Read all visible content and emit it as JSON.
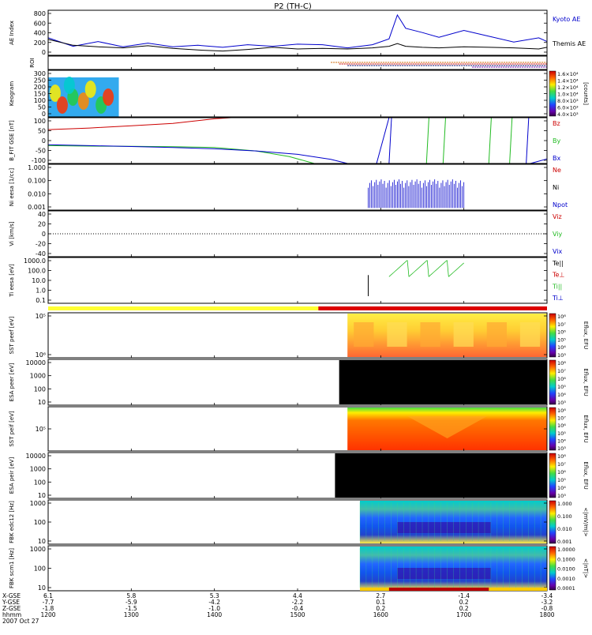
{
  "header": {
    "title": "P2 (TH-C)"
  },
  "footer": {
    "row_labels": [
      "X-GSE",
      "Y-GSE",
      "Z-GSE",
      "hhmm",
      "2007 Oct 27"
    ],
    "date": "2007 Oct 27",
    "columns": [
      {
        "x_gse": "6.1",
        "y_gse": "-7.7",
        "z_gse": "-1.8",
        "hhmm": "1200"
      },
      {
        "x_gse": "5.8",
        "y_gse": "-5.9",
        "z_gse": "-1.5",
        "hhmm": "1300"
      },
      {
        "x_gse": "5.3",
        "y_gse": "-4.2",
        "z_gse": "-1.0",
        "hhmm": "1400"
      },
      {
        "x_gse": "4.4",
        "y_gse": "-2.2",
        "z_gse": "-0.4",
        "hhmm": "1500"
      },
      {
        "x_gse": "2.7",
        "y_gse": "0.1",
        "z_gse": "0.2",
        "hhmm": "1600"
      },
      {
        "x_gse": "-1.4",
        "y_gse": "0.2",
        "z_gse": "0.2",
        "hhmm": "1700"
      },
      {
        "x_gse": "-3.4",
        "y_gse": "-3.2",
        "z_gse": "-0.8",
        "hhmm": "1800"
      }
    ]
  },
  "colors": {
    "red": "#cc0000",
    "green": "#22bb22",
    "blue": "#0000cc",
    "black": "#000000",
    "yellow": "#ffff33",
    "orange": "#ff9900"
  },
  "chart_data": [
    {
      "id": "ae",
      "type": "line",
      "ylabel": "AE Index",
      "yticks": [
        "800",
        "600",
        "400",
        "200",
        "0"
      ],
      "ylim": [
        0,
        850
      ],
      "x": [
        12.0,
        12.3,
        12.6,
        12.9,
        13.2,
        13.5,
        13.8,
        14.1,
        14.4,
        14.7,
        15.0,
        15.3,
        15.6,
        15.9,
        16.1,
        16.2,
        16.3,
        16.5,
        16.7,
        17.0,
        17.3,
        17.6,
        17.9,
        18.0
      ],
      "series": [
        {
          "name": "Kyoto AE",
          "color": "#0000cc",
          "values": [
            330,
            170,
            260,
            160,
            230,
            160,
            190,
            150,
            200,
            170,
            210,
            200,
            140,
            200,
            310,
            760,
            510,
            430,
            340,
            470,
            360,
            250,
            330,
            260
          ]
        },
        {
          "name": "Themis AE",
          "color": "#000000",
          "values": [
            300,
            190,
            160,
            140,
            180,
            130,
            100,
            80,
            110,
            150,
            120,
            130,
            120,
            140,
            170,
            220,
            170,
            150,
            140,
            160,
            150,
            140,
            120,
            150
          ]
        }
      ]
    },
    {
      "id": "roi",
      "type": "bar",
      "ylabel": "ROI",
      "segments": [
        {
          "start": 15.4,
          "end": 18.0,
          "color": "#cc6600"
        },
        {
          "start": 15.5,
          "end": 18.0,
          "color": "#cc0000"
        },
        {
          "start": 15.6,
          "end": 18.0,
          "color": "#000066"
        },
        {
          "start": 17.1,
          "end": 18.0,
          "color": "#6600aa"
        }
      ]
    },
    {
      "id": "keogram",
      "type": "heatmap",
      "ylabel": "Keogram",
      "yticks": [
        "300",
        "250",
        "200",
        "150",
        "100",
        "50",
        "0"
      ],
      "ylim": [
        0,
        300
      ],
      "x_range": [
        12.0,
        12.85
      ],
      "colorbar": {
        "label": "[counts]",
        "ticks": [
          "1.6×10⁴",
          "1.4×10⁴",
          "1.2×10⁴",
          "1.0×10⁴",
          "8.0×10³",
          "6.0×10³",
          "4.0×10³"
        ]
      }
    },
    {
      "id": "bfit",
      "type": "line",
      "ylabel": "B_FIT GSE [nT]",
      "yticks": [
        "100",
        "50",
        "0",
        "-50",
        "-100"
      ],
      "ylim": [
        -100,
        100
      ],
      "legend": [
        {
          "name": "Bz",
          "color": "#cc0000"
        },
        {
          "name": "By",
          "color": "#22bb22"
        },
        {
          "name": "Bx",
          "color": "#0000cc"
        }
      ],
      "series": [
        {
          "name": "Bz",
          "color": "#cc0000",
          "x": [
            12.0,
            12.5,
            13.0,
            13.5,
            14.0,
            14.2
          ],
          "values": [
            48,
            55,
            65,
            75,
            95,
            100
          ]
        },
        {
          "name": "By",
          "color": "#22bb22",
          "x": [
            12.0,
            12.5,
            13.0,
            13.5,
            14.0,
            14.5,
            14.9,
            15.2
          ],
          "values": [
            -22,
            -24,
            -25,
            -27,
            -30,
            -45,
            -70,
            -100
          ]
        },
        {
          "name": "Bx",
          "color": "#0000cc",
          "x": [
            12.0,
            12.5,
            13.0,
            13.5,
            14.0,
            14.5,
            15.0,
            15.4,
            15.6
          ],
          "values": [
            -18,
            -22,
            -26,
            -30,
            -36,
            -45,
            -60,
            -82,
            -100
          ]
        }
      ],
      "spikes": [
        {
          "x": 16.1,
          "y1": -100,
          "y2": 100,
          "color": "#0000cc"
        },
        {
          "x": 16.55,
          "y1": -100,
          "y2": 100,
          "color": "#22bb22"
        },
        {
          "x": 16.75,
          "y1": -100,
          "y2": 100,
          "color": "#22bb22"
        },
        {
          "x": 17.3,
          "y1": -100,
          "y2": 100,
          "color": "#22bb22"
        },
        {
          "x": 17.55,
          "y1": -100,
          "y2": 100,
          "color": "#22bb22"
        },
        {
          "x": 17.75,
          "y1": -100,
          "y2": 100,
          "color": "#0000cc"
        }
      ]
    },
    {
      "id": "ni",
      "type": "line",
      "ylabel": "Ni eesa [1/cc]",
      "yticks": [
        "1.000",
        "0.100",
        "0.010",
        "0.001"
      ],
      "ylim": [
        0.0007,
        1.5
      ],
      "scale": "log",
      "legend": [
        {
          "name": "Ne",
          "color": "#cc0000"
        },
        {
          "name": "Ni",
          "color": "#000000"
        },
        {
          "name": "Npot",
          "color": "#0000cc"
        }
      ],
      "spikes_region": {
        "start": 15.85,
        "end": 17.0,
        "color": "#0000cc",
        "low": 0.001,
        "high": 0.12
      }
    },
    {
      "id": "vi",
      "type": "line",
      "ylabel": "Vi [km/s]",
      "yticks": [
        "40",
        "20",
        "0",
        "-20",
        "-40"
      ],
      "ylim": [
        -50,
        50
      ],
      "legend": [
        {
          "name": "Viz",
          "color": "#cc0000"
        },
        {
          "name": "Viy",
          "color": "#22bb22"
        },
        {
          "name": "Vix",
          "color": "#0000cc"
        }
      ]
    },
    {
      "id": "ti",
      "type": "line",
      "ylabel": "Ti eesa [eV]",
      "yticks": [
        "1000.0",
        "100.0",
        "10.0",
        "1.0",
        "0.1"
      ],
      "ylim": [
        0.05,
        5000
      ],
      "scale": "log",
      "legend": [
        {
          "name": "Te||",
          "color": "#000000"
        },
        {
          "name": "Te⊥",
          "color": "#cc0000"
        },
        {
          "name": "Ti||",
          "color": "#22bb22"
        },
        {
          "name": "Ti⊥",
          "color": "#0000cc"
        }
      ],
      "spikes_region": {
        "start": 16.1,
        "end": 17.0,
        "color": "#22bb22",
        "low": 40,
        "high": 2500
      },
      "spike": {
        "x": 15.85,
        "low": 0.3,
        "high": 60,
        "color": "#000000"
      }
    },
    {
      "id": "mode",
      "type": "bar",
      "segments": [
        {
          "start": 12.0,
          "end": 15.25,
          "color": "#ffff33"
        },
        {
          "start": 15.25,
          "end": 18.0,
          "color": "#dd0000"
        }
      ]
    },
    {
      "id": "sst_e",
      "type": "heatmap",
      "ylabel": "SST peef [eV]",
      "yticks": [
        "10⁵",
        "10⁶"
      ],
      "x_range": [
        15.6,
        18.0
      ],
      "fill": "warm",
      "colorbar": {
        "label": "Eflux, EFU",
        "ticks": [
          "10⁸",
          "10⁷",
          "10⁶",
          "10⁵",
          "10⁴",
          "10³"
        ]
      }
    },
    {
      "id": "esa_e",
      "type": "heatmap",
      "ylabel": "ESA peer [eV]",
      "yticks": [
        "10000",
        "1000",
        "100",
        "10"
      ],
      "x_range": [
        15.5,
        18.0
      ],
      "fill": "black",
      "colorbar": {
        "label": "Eflux, EFU",
        "ticks": [
          "10⁸",
          "10⁷",
          "10⁶",
          "10⁵",
          "10⁴",
          "10³"
        ]
      }
    },
    {
      "id": "sst_i",
      "type": "heatmap",
      "ylabel": "SST peif [eV]",
      "yticks": [
        "10⁵"
      ],
      "x_range": [
        15.6,
        18.0
      ],
      "fill": "hot",
      "colorbar": {
        "label": "Eflux, EFU",
        "ticks": [
          "10⁸",
          "10⁷",
          "10⁶",
          "10⁵",
          "10⁴",
          "10³"
        ]
      }
    },
    {
      "id": "esa_i",
      "type": "heatmap",
      "ylabel": "ESA peir [eV]",
      "yticks": [
        "10000",
        "1000",
        "100",
        "10"
      ],
      "x_range": [
        15.45,
        18.0
      ],
      "fill": "black",
      "colorbar": {
        "label": "Eflux, EFU",
        "ticks": [
          "10⁸",
          "10⁷",
          "10⁶",
          "10⁵",
          "10⁴",
          "10³"
        ]
      }
    },
    {
      "id": "fbk_e",
      "type": "heatmap",
      "ylabel": "FBK edc12 [Hz]",
      "yticks": [
        "1000",
        "100",
        "10"
      ],
      "x_range": [
        15.75,
        18.0
      ],
      "fill": "cool",
      "colorbar": {
        "label": "<|mV/m|>",
        "ticks": [
          "1.000",
          "0.100",
          "0.010",
          "0.001"
        ]
      }
    },
    {
      "id": "fbk_b",
      "type": "heatmap",
      "ylabel": "FBK scm1 [Hz]",
      "yticks": [
        "1000",
        "100",
        "10"
      ],
      "x_range": [
        15.75,
        18.0
      ],
      "fill": "cool",
      "colorbar": {
        "label": "<|nT|>",
        "ticks": [
          "1.0000",
          "0.1000",
          "0.0100",
          "0.0010",
          "0.0001"
        ]
      }
    }
  ]
}
